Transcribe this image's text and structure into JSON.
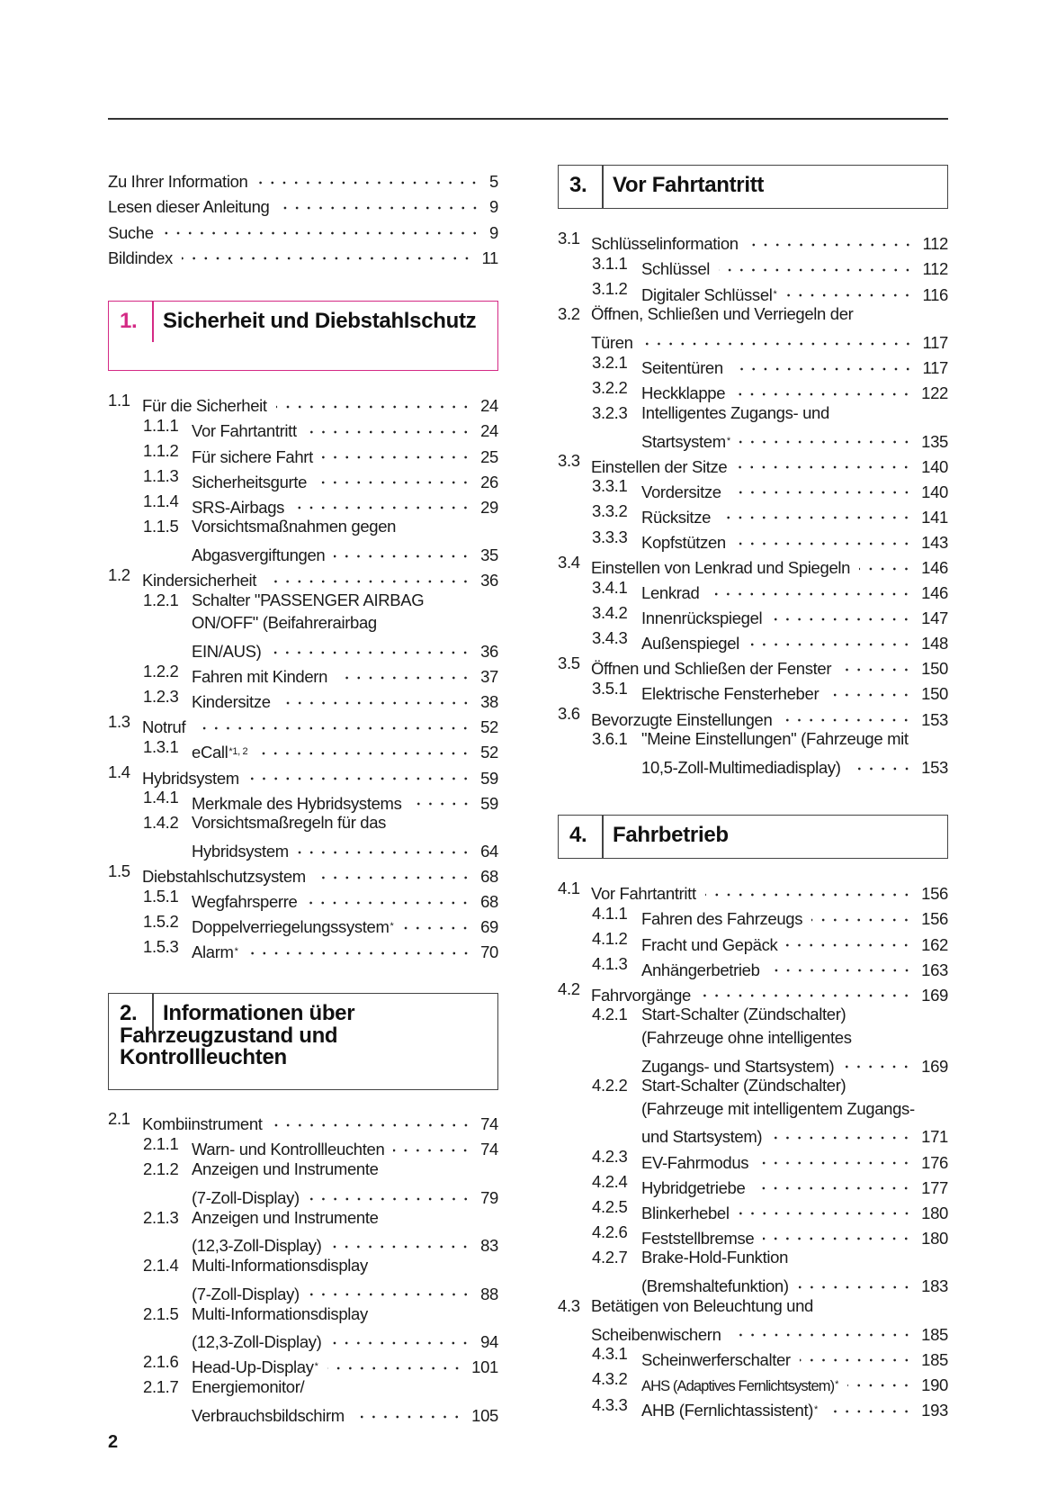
{
  "page_number": "2",
  "colors": {
    "chapter1_accent": "#d42a85",
    "box_border": "#444444"
  },
  "intro": [
    {
      "text": "Zu Ihrer Information",
      "page": "5"
    },
    {
      "text": "Lesen dieser Anleitung",
      "page": "9"
    },
    {
      "text": "Suche",
      "page": "9"
    },
    {
      "text": "Bildindex",
      "page": "11"
    }
  ],
  "chapters": [
    {
      "number": "1.",
      "title": "Sicherheit und Diebstahlschutz",
      "entries": [
        {
          "level": 0,
          "num": "1.1",
          "lines": [
            "Für die Sicherheit"
          ],
          "page": "24"
        },
        {
          "level": 1,
          "num": "1.1.1",
          "lines": [
            "Vor Fahrtantritt"
          ],
          "page": "24"
        },
        {
          "level": 1,
          "num": "1.1.2",
          "lines": [
            "Für sichere Fahrt"
          ],
          "page": "25"
        },
        {
          "level": 1,
          "num": "1.1.3",
          "lines": [
            "Sicherheitsgurte"
          ],
          "page": "26"
        },
        {
          "level": 1,
          "num": "1.1.4",
          "lines": [
            "SRS-Airbags"
          ],
          "page": "29"
        },
        {
          "level": 1,
          "num": "1.1.5",
          "lines": [
            "Vorsichtsmaßnahmen gegen",
            "Abgasvergiftungen"
          ],
          "page": "35"
        },
        {
          "level": 0,
          "num": "1.2",
          "lines": [
            "Kindersicherheit"
          ],
          "page": "36"
        },
        {
          "level": 1,
          "num": "1.2.1",
          "lines": [
            "Schalter \"PASSENGER AIRBAG",
            "ON/OFF\" (Beifahrerairbag",
            "EIN/AUS)"
          ],
          "page": "36"
        },
        {
          "level": 1,
          "num": "1.2.2",
          "lines": [
            "Fahren mit Kindern"
          ],
          "page": "37"
        },
        {
          "level": 1,
          "num": "1.2.3",
          "lines": [
            "Kindersitze"
          ],
          "page": "38"
        },
        {
          "level": 0,
          "num": "1.3",
          "lines": [
            "Notruf"
          ],
          "page": "52"
        },
        {
          "level": 1,
          "num": "1.3.1",
          "lines": [
            "eCall"
          ],
          "sup": "*1, 2",
          "page": "52"
        },
        {
          "level": 0,
          "num": "1.4",
          "lines": [
            "Hybridsystem"
          ],
          "page": "59"
        },
        {
          "level": 1,
          "num": "1.4.1",
          "lines": [
            "Merkmale des Hybridsystems"
          ],
          "page": "59"
        },
        {
          "level": 1,
          "num": "1.4.2",
          "lines": [
            "Vorsichtsmaßregeln für das",
            "Hybridsystem"
          ],
          "page": "64"
        },
        {
          "level": 0,
          "num": "1.5",
          "lines": [
            "Diebstahlschutzsystem"
          ],
          "page": "68"
        },
        {
          "level": 1,
          "num": "1.5.1",
          "lines": [
            "Wegfahrsperre"
          ],
          "page": "68"
        },
        {
          "level": 1,
          "num": "1.5.2",
          "lines": [
            "Doppelverriegelungssystem"
          ],
          "sup": "*",
          "page": "69"
        },
        {
          "level": 1,
          "num": "1.5.3",
          "lines": [
            "Alarm"
          ],
          "sup": "*",
          "page": "70"
        }
      ]
    },
    {
      "number": "2.",
      "title": "Informationen über Fahrzeugzustand und Kontrollleuchten",
      "entries": [
        {
          "level": 0,
          "num": "2.1",
          "lines": [
            "Kombiinstrument"
          ],
          "page": "74"
        },
        {
          "level": 1,
          "num": "2.1.1",
          "lines": [
            "Warn- und Kontrollleuchten"
          ],
          "page": "74"
        },
        {
          "level": 1,
          "num": "2.1.2",
          "lines": [
            "Anzeigen und Instrumente",
            "(7-Zoll-Display)"
          ],
          "page": "79"
        },
        {
          "level": 1,
          "num": "2.1.3",
          "lines": [
            "Anzeigen und Instrumente",
            "(12,3-Zoll-Display)"
          ],
          "page": "83"
        },
        {
          "level": 1,
          "num": "2.1.4",
          "lines": [
            "Multi-Informationsdisplay",
            "(7-Zoll-Display)"
          ],
          "page": "88"
        },
        {
          "level": 1,
          "num": "2.1.5",
          "lines": [
            "Multi-Informationsdisplay",
            "(12,3-Zoll-Display)"
          ],
          "page": "94"
        },
        {
          "level": 1,
          "num": "2.1.6",
          "lines": [
            "Head-Up-Display"
          ],
          "sup": "*",
          "page": "101"
        },
        {
          "level": 1,
          "num": "2.1.7",
          "lines": [
            "Energiemonitor/",
            "Verbrauchsbildschirm"
          ],
          "page": "105"
        }
      ]
    },
    {
      "number": "3.",
      "title": "Vor Fahrtantritt",
      "entries": [
        {
          "level": 0,
          "num": "3.1",
          "lines": [
            "Schlüsselinformation"
          ],
          "page": "112"
        },
        {
          "level": 1,
          "num": "3.1.1",
          "lines": [
            "Schlüssel"
          ],
          "page": "112"
        },
        {
          "level": 1,
          "num": "3.1.2",
          "lines": [
            "Digitaler Schlüssel"
          ],
          "sup": "*",
          "page": "116"
        },
        {
          "level": 0,
          "num": "3.2",
          "lines": [
            "Öffnen, Schließen und Verriegeln der",
            "Türen"
          ],
          "page": "117"
        },
        {
          "level": 1,
          "num": "3.2.1",
          "lines": [
            "Seitentüren"
          ],
          "page": "117"
        },
        {
          "level": 1,
          "num": "3.2.2",
          "lines": [
            "Heckklappe"
          ],
          "page": "122"
        },
        {
          "level": 1,
          "num": "3.2.3",
          "lines": [
            "Intelligentes Zugangs- und",
            "Startsystem"
          ],
          "sup": "*",
          "page": "135"
        },
        {
          "level": 0,
          "num": "3.3",
          "lines": [
            "Einstellen der Sitze"
          ],
          "page": "140"
        },
        {
          "level": 1,
          "num": "3.3.1",
          "lines": [
            "Vordersitze"
          ],
          "page": "140"
        },
        {
          "level": 1,
          "num": "3.3.2",
          "lines": [
            "Rücksitze"
          ],
          "page": "141"
        },
        {
          "level": 1,
          "num": "3.3.3",
          "lines": [
            "Kopfstützen"
          ],
          "page": "143"
        },
        {
          "level": 0,
          "num": "3.4",
          "lines": [
            "Einstellen von Lenkrad und Spiegeln"
          ],
          "page": "146"
        },
        {
          "level": 1,
          "num": "3.4.1",
          "lines": [
            "Lenkrad"
          ],
          "page": "146"
        },
        {
          "level": 1,
          "num": "3.4.2",
          "lines": [
            "Innenrückspiegel"
          ],
          "page": "147"
        },
        {
          "level": 1,
          "num": "3.4.3",
          "lines": [
            "Außenspiegel"
          ],
          "page": "148"
        },
        {
          "level": 0,
          "num": "3.5",
          "lines": [
            "Öffnen und Schließen der Fenster"
          ],
          "page": "150"
        },
        {
          "level": 1,
          "num": "3.5.1",
          "lines": [
            "Elektrische Fensterheber"
          ],
          "page": "150"
        },
        {
          "level": 0,
          "num": "3.6",
          "lines": [
            "Bevorzugte Einstellungen"
          ],
          "page": "153"
        },
        {
          "level": 1,
          "num": "3.6.1",
          "lines": [
            "\"Meine Einstellungen\" (Fahrzeuge mit",
            "10,5-Zoll-Multimediadisplay)"
          ],
          "page": "153"
        }
      ]
    },
    {
      "number": "4.",
      "title": "Fahrbetrieb",
      "entries": [
        {
          "level": 0,
          "num": "4.1",
          "lines": [
            "Vor Fahrtantritt"
          ],
          "page": "156"
        },
        {
          "level": 1,
          "num": "4.1.1",
          "lines": [
            "Fahren des Fahrzeugs"
          ],
          "page": "156"
        },
        {
          "level": 1,
          "num": "4.1.2",
          "lines": [
            "Fracht und Gepäck"
          ],
          "page": "162"
        },
        {
          "level": 1,
          "num": "4.1.3",
          "lines": [
            "Anhängerbetrieb"
          ],
          "page": "163"
        },
        {
          "level": 0,
          "num": "4.2",
          "lines": [
            "Fahrvorgänge"
          ],
          "page": "169"
        },
        {
          "level": 1,
          "num": "4.2.1",
          "lines": [
            "Start-Schalter (Zündschalter)",
            "(Fahrzeuge ohne intelligentes",
            "Zugangs- und Startsystem)"
          ],
          "page": "169"
        },
        {
          "level": 1,
          "num": "4.2.2",
          "lines": [
            "Start-Schalter (Zündschalter)",
            "(Fahrzeuge mit intelligentem Zugangs-",
            "und Startsystem)"
          ],
          "page": "171"
        },
        {
          "level": 1,
          "num": "4.2.3",
          "lines": [
            "EV-Fahrmodus"
          ],
          "page": "176"
        },
        {
          "level": 1,
          "num": "4.2.4",
          "lines": [
            "Hybridgetriebe"
          ],
          "page": "177"
        },
        {
          "level": 1,
          "num": "4.2.5",
          "lines": [
            "Blinkerhebel"
          ],
          "page": "180"
        },
        {
          "level": 1,
          "num": "4.2.6",
          "lines": [
            "Feststellbremse"
          ],
          "page": "180"
        },
        {
          "level": 1,
          "num": "4.2.7",
          "lines": [
            "Brake-Hold-Funktion",
            "(Bremshaltefunktion)"
          ],
          "page": "183"
        },
        {
          "level": 0,
          "num": "4.3",
          "lines": [
            "Betätigen von Beleuchtung und",
            "Scheibenwischern"
          ],
          "page": "185"
        },
        {
          "level": 1,
          "num": "4.3.1",
          "lines": [
            "Scheinwerferschalter"
          ],
          "page": "185"
        },
        {
          "level": 1,
          "num": "4.3.2",
          "lines": [
            "AHS (Adaptives Fernlichtsystem)"
          ],
          "sup": "*",
          "page": "190",
          "condensed": true
        },
        {
          "level": 1,
          "num": "4.3.3",
          "lines": [
            "AHB (Fernlichtassistent)"
          ],
          "sup": "*",
          "page": "193"
        }
      ]
    }
  ]
}
